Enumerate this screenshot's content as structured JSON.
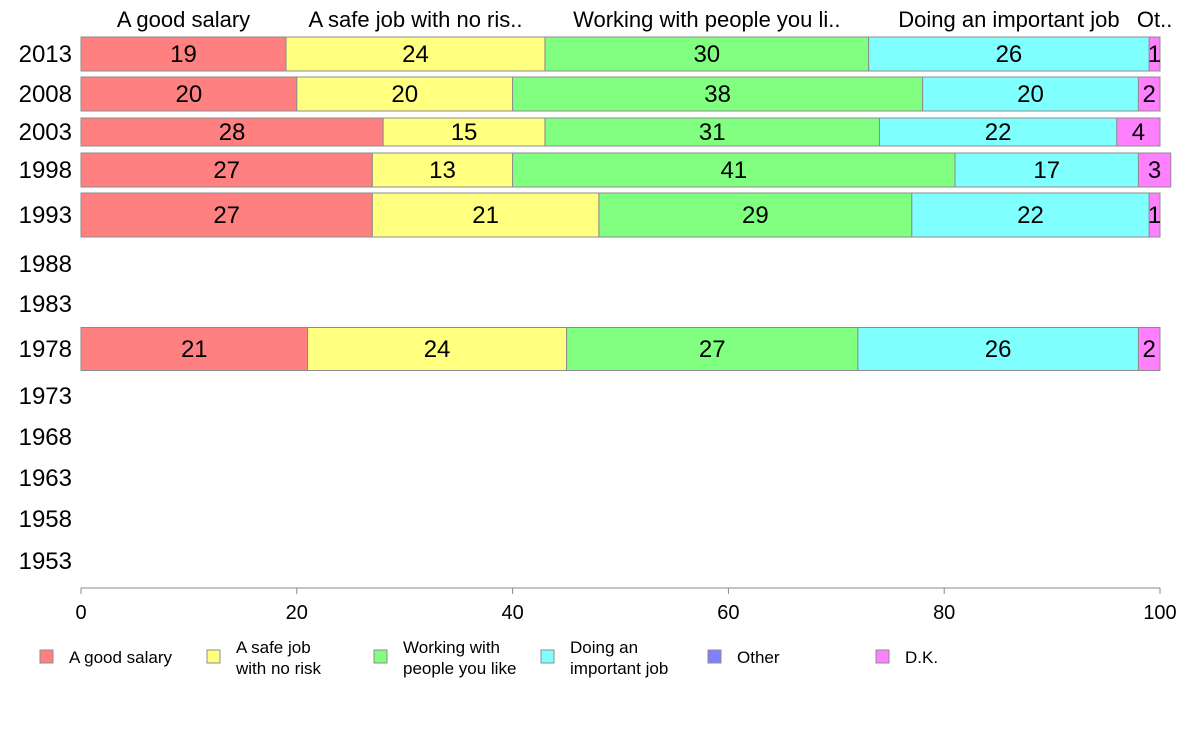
{
  "chart_data": {
    "type": "bar",
    "orientation": "horizontal",
    "stacked": true,
    "title": "",
    "xlabel": "",
    "ylabel": "",
    "xlim": [
      0,
      100
    ],
    "x_ticks": [
      0,
      20,
      40,
      60,
      80,
      100
    ],
    "grid": false,
    "legend_position": "bottom",
    "categories": [
      "2013",
      "2008",
      "2003",
      "1998",
      "1993",
      "1988",
      "1983",
      "1978",
      "1973",
      "1968",
      "1963",
      "1958",
      "1953"
    ],
    "top_labels": [
      "A good salary",
      "A safe job with no ris..",
      "Working with people you li..",
      "Doing an important job",
      "Ot.."
    ],
    "series": [
      {
        "name": "A good salary",
        "legend_lines": [
          "A good salary"
        ],
        "color": "#ff8080",
        "values": [
          19,
          20,
          28,
          27,
          27,
          null,
          null,
          21,
          null,
          null,
          null,
          null,
          null
        ]
      },
      {
        "name": "A safe job with no risk",
        "legend_lines": [
          "A safe job",
          "with no risk"
        ],
        "color": "#ffff80",
        "values": [
          24,
          20,
          15,
          13,
          21,
          null,
          null,
          24,
          null,
          null,
          null,
          null,
          null
        ]
      },
      {
        "name": "Working with people you like",
        "legend_lines": [
          "Working with",
          "people you like"
        ],
        "color": "#80ff80",
        "values": [
          30,
          38,
          31,
          41,
          29,
          null,
          null,
          27,
          null,
          null,
          null,
          null,
          null
        ]
      },
      {
        "name": "Doing an important job",
        "legend_lines": [
          "Doing an",
          "important job"
        ],
        "color": "#80ffff",
        "values": [
          26,
          20,
          22,
          17,
          22,
          null,
          null,
          26,
          null,
          null,
          null,
          null,
          null
        ]
      },
      {
        "name": "Other",
        "legend_lines": [
          "Other"
        ],
        "color": "#8080ff",
        "values": [
          0,
          0,
          0,
          0,
          0,
          null,
          null,
          0,
          null,
          null,
          null,
          null,
          null
        ]
      },
      {
        "name": "D.K.",
        "legend_lines": [
          "D.K."
        ],
        "color": "#ff80ff",
        "values": [
          1,
          2,
          4,
          3,
          1,
          null,
          null,
          2,
          null,
          null,
          null,
          null,
          null
        ]
      }
    ]
  }
}
